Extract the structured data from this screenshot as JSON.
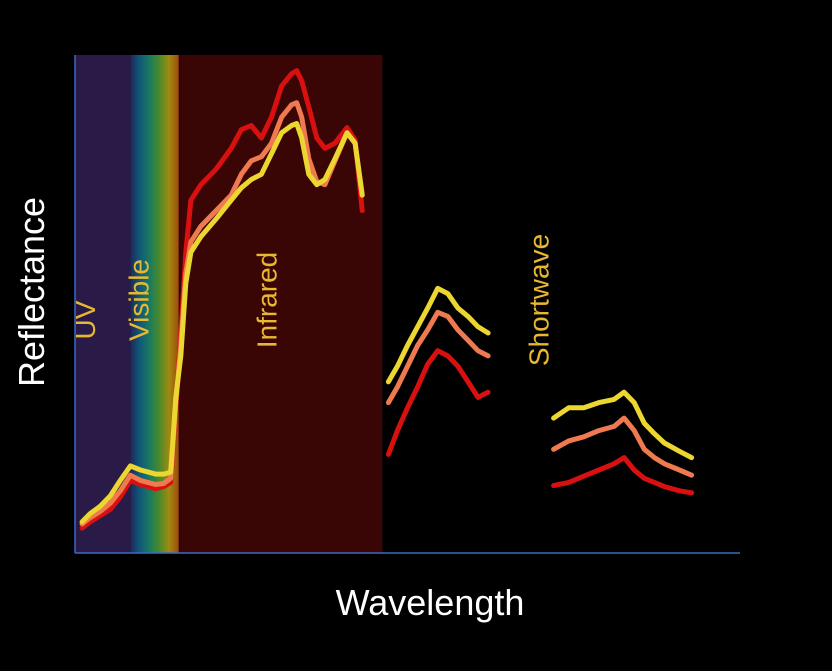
{
  "chart_data": {
    "type": "line",
    "title": "",
    "xlabel": "Wavelength",
    "ylabel": "Reflectance",
    "xlim": [
      0,
      660
    ],
    "ylim": [
      0,
      480
    ],
    "grid": false,
    "legend": "none",
    "colors": {
      "background": "#000000",
      "axis": "#3a6bc4",
      "label_text": "#e8b830",
      "title_text": "#ffffff"
    },
    "regions": [
      {
        "label": "UV",
        "x0": 0,
        "x1": 55,
        "color": "#2a1a48"
      },
      {
        "label": "Visible",
        "x0": 55,
        "x1": 103,
        "color": "rainbow"
      },
      {
        "label": "Infrared",
        "x0": 103,
        "x1": 305,
        "color": "#3a0505"
      },
      {
        "label": "Shortwave",
        "x0": 470,
        "x1": 470,
        "color": "none"
      }
    ],
    "series": [
      {
        "color": "#d81010",
        "segments": [
          [
            [
              7,
              24
            ],
            [
              15,
              30
            ],
            [
              25,
              36
            ],
            [
              35,
              42
            ],
            [
              45,
              54
            ],
            [
              55,
              70
            ],
            [
              65,
              66
            ],
            [
              80,
              62
            ],
            [
              88,
              64
            ],
            [
              95,
              68
            ],
            [
              100,
              140
            ],
            [
              105,
              210
            ],
            [
              110,
              290
            ],
            [
              115,
              340
            ],
            [
              125,
              355
            ],
            [
              140,
              370
            ],
            [
              155,
              390
            ],
            [
              165,
              408
            ],
            [
              175,
              412
            ],
            [
              185,
              400
            ],
            [
              195,
              420
            ],
            [
              205,
              450
            ],
            [
              215,
              462
            ],
            [
              220,
              465
            ],
            [
              225,
              455
            ],
            [
              232,
              430
            ],
            [
              240,
              400
            ],
            [
              248,
              390
            ],
            [
              258,
              395
            ],
            [
              270,
              410
            ],
            [
              278,
              398
            ],
            [
              285,
              330
            ]
          ],
          [
            [
              311,
              95
            ],
            [
              320,
              118
            ],
            [
              330,
              140
            ],
            [
              340,
              160
            ],
            [
              350,
              182
            ],
            [
              360,
              195
            ],
            [
              370,
              190
            ],
            [
              380,
              180
            ],
            [
              390,
              165
            ],
            [
              400,
              150
            ],
            [
              410,
              155
            ]
          ],
          [
            [
              475,
              65
            ],
            [
              490,
              68
            ],
            [
              505,
              74
            ],
            [
              520,
              80
            ],
            [
              535,
              86
            ],
            [
              545,
              92
            ],
            [
              555,
              80
            ],
            [
              565,
              72
            ],
            [
              575,
              68
            ],
            [
              585,
              64
            ],
            [
              600,
              60
            ],
            [
              612,
              58
            ]
          ]
        ]
      },
      {
        "color": "#f07a50",
        "segments": [
          [
            [
              7,
              28
            ],
            [
              15,
              34
            ],
            [
              25,
              40
            ],
            [
              35,
              48
            ],
            [
              45,
              60
            ],
            [
              55,
              75
            ],
            [
              65,
              70
            ],
            [
              80,
              66
            ],
            [
              88,
              67
            ],
            [
              95,
              72
            ],
            [
              100,
              145
            ],
            [
              105,
              200
            ],
            [
              110,
              270
            ],
            [
              115,
              300
            ],
            [
              125,
              315
            ],
            [
              140,
              330
            ],
            [
              155,
              345
            ],
            [
              165,
              365
            ],
            [
              175,
              378
            ],
            [
              185,
              382
            ],
            [
              195,
              395
            ],
            [
              205,
              420
            ],
            [
              215,
              432
            ],
            [
              220,
              434
            ],
            [
              225,
              420
            ],
            [
              232,
              380
            ],
            [
              240,
              358
            ],
            [
              248,
              355
            ],
            [
              258,
              378
            ],
            [
              270,
              405
            ],
            [
              278,
              395
            ],
            [
              285,
              345
            ]
          ],
          [
            [
              311,
              145
            ],
            [
              320,
              160
            ],
            [
              330,
              180
            ],
            [
              340,
              200
            ],
            [
              350,
              215
            ],
            [
              360,
              232
            ],
            [
              370,
              228
            ],
            [
              380,
              215
            ],
            [
              390,
              205
            ],
            [
              400,
              195
            ],
            [
              410,
              190
            ]
          ],
          [
            [
              475,
              100
            ],
            [
              490,
              108
            ],
            [
              505,
              112
            ],
            [
              520,
              118
            ],
            [
              535,
              122
            ],
            [
              545,
              130
            ],
            [
              555,
              118
            ],
            [
              565,
              100
            ],
            [
              575,
              92
            ],
            [
              585,
              86
            ],
            [
              600,
              80
            ],
            [
              612,
              75
            ]
          ]
        ]
      },
      {
        "color": "#ecd630",
        "segments": [
          [
            [
              7,
              30
            ],
            [
              15,
              38
            ],
            [
              25,
              45
            ],
            [
              35,
              55
            ],
            [
              45,
              70
            ],
            [
              55,
              84
            ],
            [
              65,
              80
            ],
            [
              80,
              76
            ],
            [
              88,
              76
            ],
            [
              95,
              78
            ],
            [
              100,
              150
            ],
            [
              105,
              190
            ],
            [
              110,
              260
            ],
            [
              115,
              290
            ],
            [
              125,
              305
            ],
            [
              140,
              322
            ],
            [
              155,
              340
            ],
            [
              165,
              352
            ],
            [
              175,
              360
            ],
            [
              185,
              365
            ],
            [
              195,
              385
            ],
            [
              205,
              405
            ],
            [
              215,
              412
            ],
            [
              220,
              414
            ],
            [
              225,
              400
            ],
            [
              232,
              365
            ],
            [
              240,
              355
            ],
            [
              248,
              360
            ],
            [
              258,
              380
            ],
            [
              270,
              405
            ],
            [
              278,
              395
            ],
            [
              285,
              345
            ]
          ],
          [
            [
              311,
              165
            ],
            [
              320,
              180
            ],
            [
              330,
              200
            ],
            [
              340,
              218
            ],
            [
              350,
              236
            ],
            [
              360,
              255
            ],
            [
              370,
              250
            ],
            [
              380,
              236
            ],
            [
              390,
              228
            ],
            [
              400,
              218
            ],
            [
              410,
              212
            ]
          ],
          [
            [
              475,
              130
            ],
            [
              490,
              140
            ],
            [
              505,
              140
            ],
            [
              520,
              145
            ],
            [
              535,
              148
            ],
            [
              545,
              155
            ],
            [
              555,
              145
            ],
            [
              565,
              125
            ],
            [
              575,
              115
            ],
            [
              585,
              106
            ],
            [
              600,
              98
            ],
            [
              612,
              92
            ]
          ]
        ]
      }
    ]
  }
}
